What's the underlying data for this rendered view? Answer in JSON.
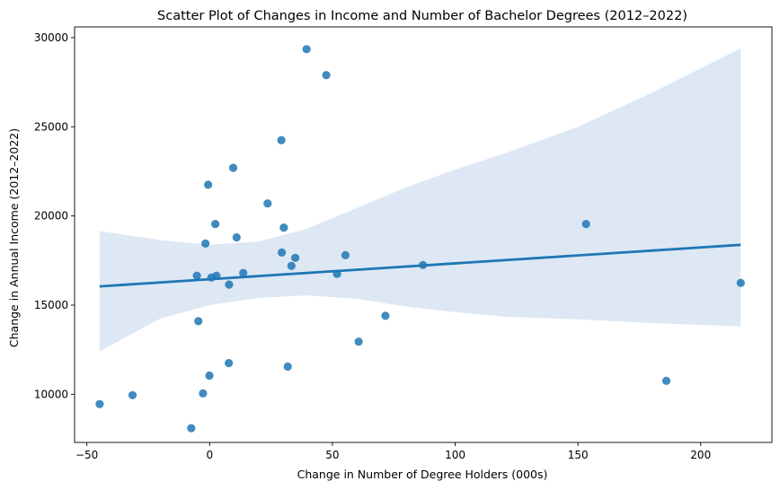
{
  "chart_data": {
    "type": "scatter",
    "title": "Scatter Plot of Changes in Income and Number of Bachelor Degrees (2012–2022)",
    "xlabel": "Change in Number of Degree Holders (000s)",
    "ylabel": "Change in Annual Income (2012–2022)",
    "xlim": [
      -55,
      229
    ],
    "ylim": [
      7300,
      30600
    ],
    "xticks": [
      -50,
      0,
      50,
      100,
      150,
      200
    ],
    "xtick_labels": [
      "−50",
      "0",
      "50",
      "100",
      "150",
      "200"
    ],
    "yticks": [
      10000,
      15000,
      20000,
      25000,
      30000
    ],
    "ytick_labels": [
      "10000",
      "15000",
      "20000",
      "25000",
      "30000"
    ],
    "grid": false,
    "legend": "none",
    "point_color": "#1f77b4",
    "line_color": "#1f77b4",
    "band_color": "#c6d9ec",
    "points": [
      {
        "x": 39.5,
        "y": 29350
      },
      {
        "x": 47.5,
        "y": 27900
      },
      {
        "x": 29.2,
        "y": 24250
      },
      {
        "x": 9.6,
        "y": 22700
      },
      {
        "x": -0.6,
        "y": 21750
      },
      {
        "x": 23.6,
        "y": 20700
      },
      {
        "x": 2.3,
        "y": 19550
      },
      {
        "x": 30.2,
        "y": 19350
      },
      {
        "x": 153.3,
        "y": 19550
      },
      {
        "x": -1.7,
        "y": 18450
      },
      {
        "x": 11.0,
        "y": 18800
      },
      {
        "x": 29.4,
        "y": 17950
      },
      {
        "x": 34.9,
        "y": 17650
      },
      {
        "x": 55.3,
        "y": 17800
      },
      {
        "x": 33.3,
        "y": 17200
      },
      {
        "x": 86.9,
        "y": 17250
      },
      {
        "x": -5.2,
        "y": 16650
      },
      {
        "x": 0.7,
        "y": 16550
      },
      {
        "x": 2.8,
        "y": 16650
      },
      {
        "x": 13.7,
        "y": 16800
      },
      {
        "x": 51.9,
        "y": 16750
      },
      {
        "x": 7.9,
        "y": 16150
      },
      {
        "x": 216.3,
        "y": 16250
      },
      {
        "x": -4.6,
        "y": 14100
      },
      {
        "x": 71.6,
        "y": 14400
      },
      {
        "x": 60.7,
        "y": 12950
      },
      {
        "x": 7.8,
        "y": 11750
      },
      {
        "x": 31.8,
        "y": 11550
      },
      {
        "x": -0.1,
        "y": 11050
      },
      {
        "x": -2.7,
        "y": 10050
      },
      {
        "x": 186.0,
        "y": 10750
      },
      {
        "x": -44.8,
        "y": 9450
      },
      {
        "x": -31.4,
        "y": 9950
      },
      {
        "x": -7.5,
        "y": 8100
      }
    ],
    "regression": {
      "x": [
        -44.8,
        216.3
      ],
      "y": [
        16050,
        18380
      ]
    },
    "confidence_band": {
      "x": [
        -44.8,
        -20,
        0,
        20,
        40,
        60,
        80,
        100,
        120,
        150,
        180,
        216.3
      ],
      "upper": [
        19150,
        18650,
        18380,
        18570,
        19300,
        20450,
        21600,
        22600,
        23500,
        25000,
        26900,
        29400
      ],
      "lower": [
        12400,
        14250,
        15000,
        15400,
        15550,
        15350,
        14920,
        14600,
        14350,
        14200,
        14000,
        13800
      ]
    }
  }
}
